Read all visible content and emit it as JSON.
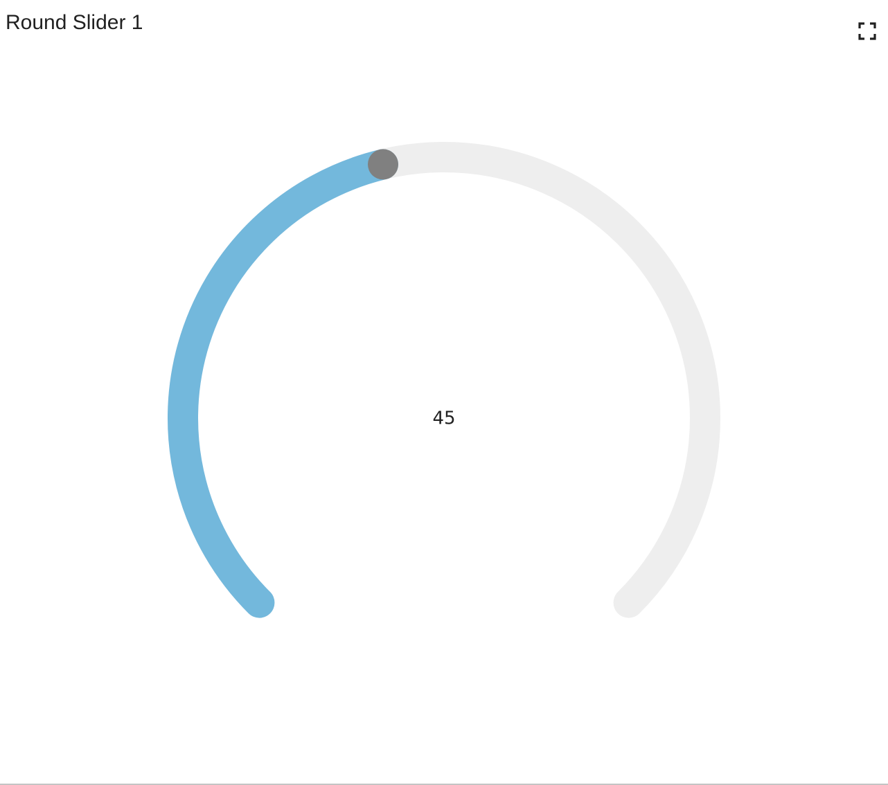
{
  "widget": {
    "title": "Round Slider 1",
    "fullscreen_icon": "fullscreen-icon"
  },
  "slider": {
    "value": "45",
    "value_fraction": 0.45,
    "colors": {
      "track": "#eeeeee",
      "progress": "#73b8dc",
      "handle": "#808080",
      "text": "#212121"
    }
  }
}
